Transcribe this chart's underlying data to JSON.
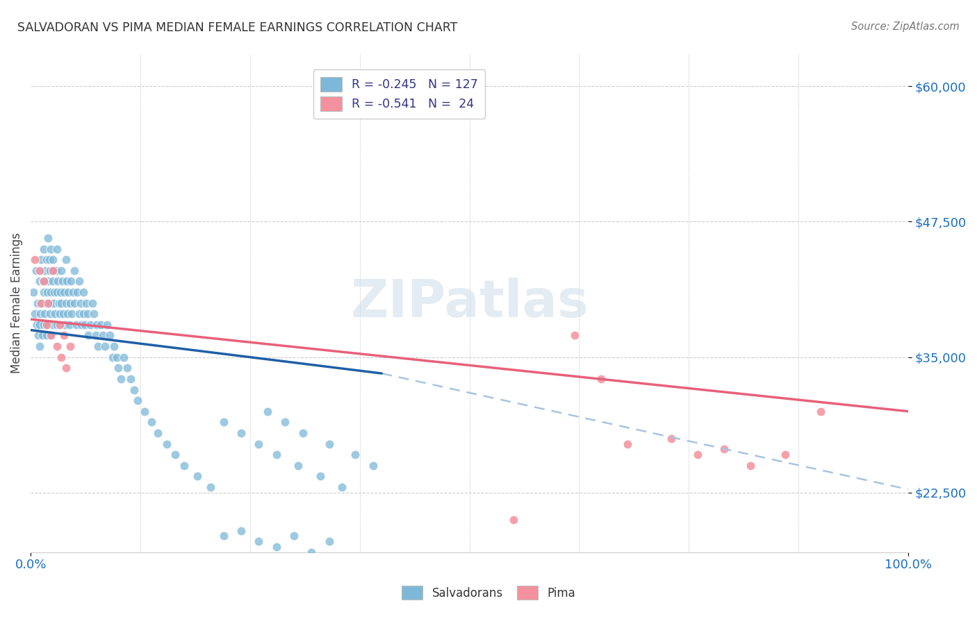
{
  "title": "SALVADORAN VS PIMA MEDIAN FEMALE EARNINGS CORRELATION CHART",
  "source": "Source: ZipAtlas.com",
  "ylabel": "Median Female Earnings",
  "yticks": [
    22500,
    35000,
    47500,
    60000
  ],
  "ytick_labels": [
    "$22,500",
    "$35,000",
    "$47,500",
    "$60,000"
  ],
  "xlim": [
    0.0,
    1.0
  ],
  "ylim": [
    17000,
    63000
  ],
  "watermark": "ZIPatlas",
  "blue_color": "#7db8d8",
  "pink_color": "#f4919e",
  "blue_line_color": "#1f5fa6",
  "pink_line_color": "#e8607a",
  "dashed_line_color": "#a8c4e0",
  "legend_blue_label": "R = -0.245   N = 127",
  "legend_pink_label": "R = -0.541   N =  24",
  "blue_line_x0": 0.0,
  "blue_line_y0": 37500,
  "blue_line_x1": 0.4,
  "blue_line_y1": 33500,
  "dash_line_x0": 0.4,
  "dash_line_y0": 33500,
  "dash_line_x1": 1.0,
  "dash_line_y1": 22800,
  "pink_line_x0": 0.0,
  "pink_line_y0": 38500,
  "pink_line_x1": 1.0,
  "pink_line_y1": 30000,
  "sal_x": [
    0.003,
    0.005,
    0.006,
    0.007,
    0.008,
    0.009,
    0.01,
    0.01,
    0.01,
    0.011,
    0.012,
    0.012,
    0.013,
    0.014,
    0.015,
    0.015,
    0.015,
    0.016,
    0.016,
    0.017,
    0.018,
    0.018,
    0.019,
    0.02,
    0.02,
    0.02,
    0.021,
    0.021,
    0.022,
    0.022,
    0.023,
    0.023,
    0.024,
    0.025,
    0.025,
    0.025,
    0.026,
    0.026,
    0.027,
    0.028,
    0.029,
    0.03,
    0.03,
    0.03,
    0.031,
    0.032,
    0.033,
    0.034,
    0.035,
    0.035,
    0.036,
    0.037,
    0.038,
    0.039,
    0.04,
    0.04,
    0.041,
    0.042,
    0.043,
    0.044,
    0.045,
    0.046,
    0.047,
    0.048,
    0.05,
    0.05,
    0.052,
    0.053,
    0.055,
    0.055,
    0.057,
    0.058,
    0.06,
    0.06,
    0.062,
    0.063,
    0.065,
    0.066,
    0.068,
    0.07,
    0.072,
    0.074,
    0.075,
    0.077,
    0.08,
    0.082,
    0.085,
    0.087,
    0.09,
    0.093,
    0.095,
    0.098,
    0.1,
    0.103,
    0.106,
    0.11,
    0.114,
    0.118,
    0.122,
    0.13,
    0.138,
    0.145,
    0.155,
    0.165,
    0.175,
    0.19,
    0.205,
    0.22,
    0.24,
    0.26,
    0.28,
    0.305,
    0.33,
    0.355,
    0.27,
    0.29,
    0.31,
    0.34,
    0.37,
    0.39,
    0.22,
    0.24,
    0.26,
    0.28,
    0.3,
    0.32,
    0.34
  ],
  "sal_y": [
    41000,
    39000,
    43000,
    38000,
    40000,
    37000,
    42000,
    38000,
    36000,
    39000,
    44000,
    40000,
    37000,
    42000,
    45000,
    41000,
    38000,
    43000,
    39000,
    40000,
    44000,
    37000,
    41000,
    46000,
    42000,
    38000,
    44000,
    40000,
    43000,
    39000,
    45000,
    41000,
    37000,
    44000,
    42000,
    38000,
    43000,
    40000,
    41000,
    39000,
    43000,
    45000,
    41000,
    38000,
    42000,
    40000,
    39000,
    41000,
    43000,
    40000,
    42000,
    39000,
    41000,
    38000,
    44000,
    40000,
    42000,
    39000,
    41000,
    38000,
    40000,
    42000,
    39000,
    41000,
    43000,
    40000,
    38000,
    41000,
    42000,
    39000,
    40000,
    38000,
    41000,
    39000,
    38000,
    40000,
    39000,
    37000,
    38000,
    40000,
    39000,
    37000,
    38000,
    36000,
    38000,
    37000,
    36000,
    38000,
    37000,
    35000,
    36000,
    35000,
    34000,
    33000,
    35000,
    34000,
    33000,
    32000,
    31000,
    30000,
    29000,
    28000,
    27000,
    26000,
    25000,
    24000,
    23000,
    29000,
    28000,
    27000,
    26000,
    25000,
    24000,
    23000,
    30000,
    29000,
    28000,
    27000,
    26000,
    25000,
    18500,
    19000,
    18000,
    17500,
    18500,
    17000,
    18000
  ],
  "pima_x": [
    0.005,
    0.01,
    0.012,
    0.015,
    0.018,
    0.02,
    0.023,
    0.025,
    0.03,
    0.033,
    0.035,
    0.038,
    0.04,
    0.045,
    0.55,
    0.62,
    0.65,
    0.68,
    0.73,
    0.76,
    0.79,
    0.82,
    0.86,
    0.9
  ],
  "pima_y": [
    44000,
    43000,
    40000,
    42000,
    38000,
    40000,
    37000,
    43000,
    36000,
    38000,
    35000,
    37000,
    34000,
    36000,
    20000,
    37000,
    33000,
    27000,
    27500,
    26000,
    26500,
    25000,
    26000,
    30000
  ]
}
